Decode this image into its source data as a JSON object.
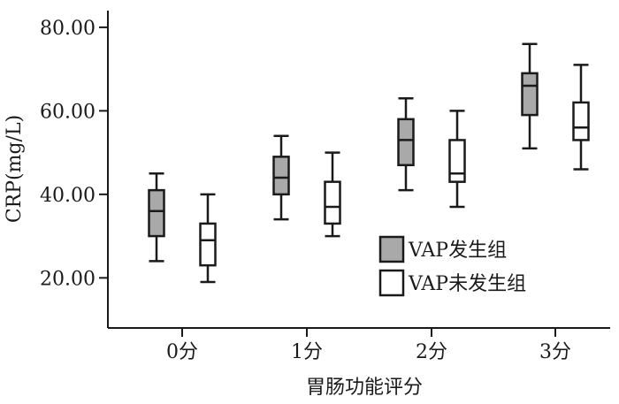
{
  "chart_data": {
    "type": "box",
    "title": "",
    "xlabel": "胃肠功能评分",
    "ylabel": "CRP(mg/L)",
    "ylim": [
      8,
      84
    ],
    "yticks": [
      "20.00",
      "40.00",
      "60.00",
      "80.00"
    ],
    "categories": [
      "0分",
      "1分",
      "2分",
      "3分"
    ],
    "series": [
      {
        "name": "VAP发生组",
        "color": "#a9a9a9",
        "boxes": [
          {
            "min": 24,
            "q1": 30,
            "median": 36,
            "q3": 41,
            "max": 45
          },
          {
            "min": 34,
            "q1": 40,
            "median": 44,
            "q3": 49,
            "max": 54
          },
          {
            "min": 41,
            "q1": 47,
            "median": 53,
            "q3": 58,
            "max": 63
          },
          {
            "min": 51,
            "q1": 59,
            "median": 66,
            "q3": 69,
            "max": 76
          }
        ]
      },
      {
        "name": "VAP未发生组",
        "color": "#ffffff",
        "boxes": [
          {
            "min": 19,
            "q1": 23,
            "median": 29,
            "q3": 33,
            "max": 40
          },
          {
            "min": 30,
            "q1": 33,
            "median": 37,
            "q3": 43,
            "max": 50
          },
          {
            "min": 37,
            "q1": 43,
            "median": 45,
            "q3": 53,
            "max": 60
          },
          {
            "min": 46,
            "q1": 53,
            "median": 56,
            "q3": 62,
            "max": 71
          }
        ]
      }
    ],
    "legend_position": "bottom-right"
  }
}
